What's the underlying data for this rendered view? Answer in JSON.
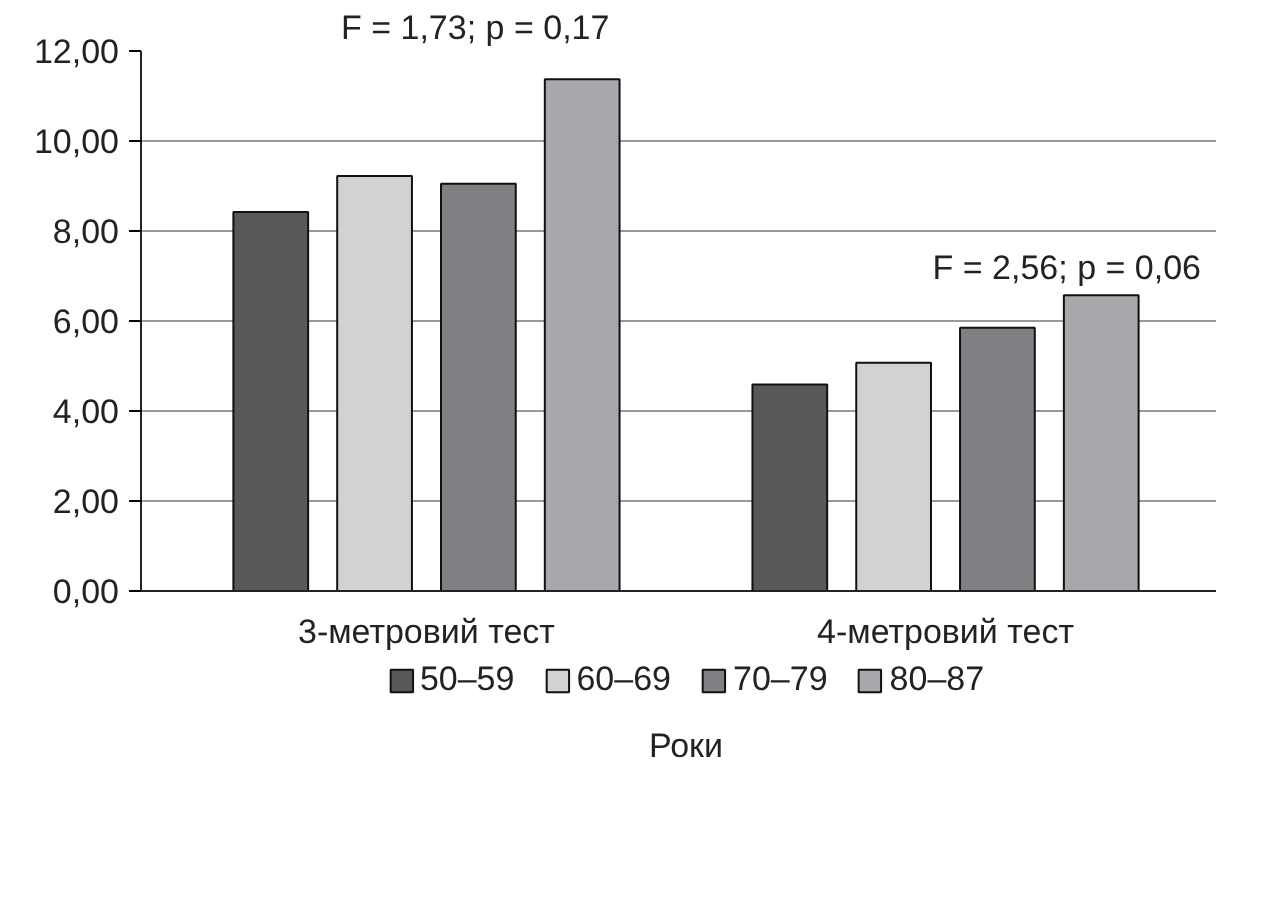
{
  "chart_data": {
    "type": "bar",
    "xlabel": "Роки",
    "categories": [
      "3-метровий тест",
      "4-метровий тест"
    ],
    "series": [
      {
        "name": "50–59",
        "color": "#58585a",
        "values": [
          8.42,
          4.59
        ]
      },
      {
        "name": "60–69",
        "color": "#d1d2d4",
        "values": [
          9.22,
          5.07
        ]
      },
      {
        "name": "70–79",
        "color": "#808184",
        "values": [
          9.05,
          5.85
        ]
      },
      {
        "name": "80–87",
        "color": "#a7a8ab",
        "values": [
          11.37,
          6.57
        ]
      }
    ],
    "ylim": [
      0,
      12
    ],
    "yticks": [
      {
        "value": 0,
        "label": "0,00"
      },
      {
        "value": 2,
        "label": "2,00"
      },
      {
        "value": 4,
        "label": "4,00"
      },
      {
        "value": 6,
        "label": "6,00"
      },
      {
        "value": 8,
        "label": "8,00"
      },
      {
        "value": 10,
        "label": "10,00"
      },
      {
        "value": 12,
        "label": "12,00"
      }
    ],
    "grid": "y",
    "legend": "bottom",
    "annotations": [
      "F = 1,73; p = 0,17",
      "F = 2,56; p = 0,06"
    ]
  }
}
